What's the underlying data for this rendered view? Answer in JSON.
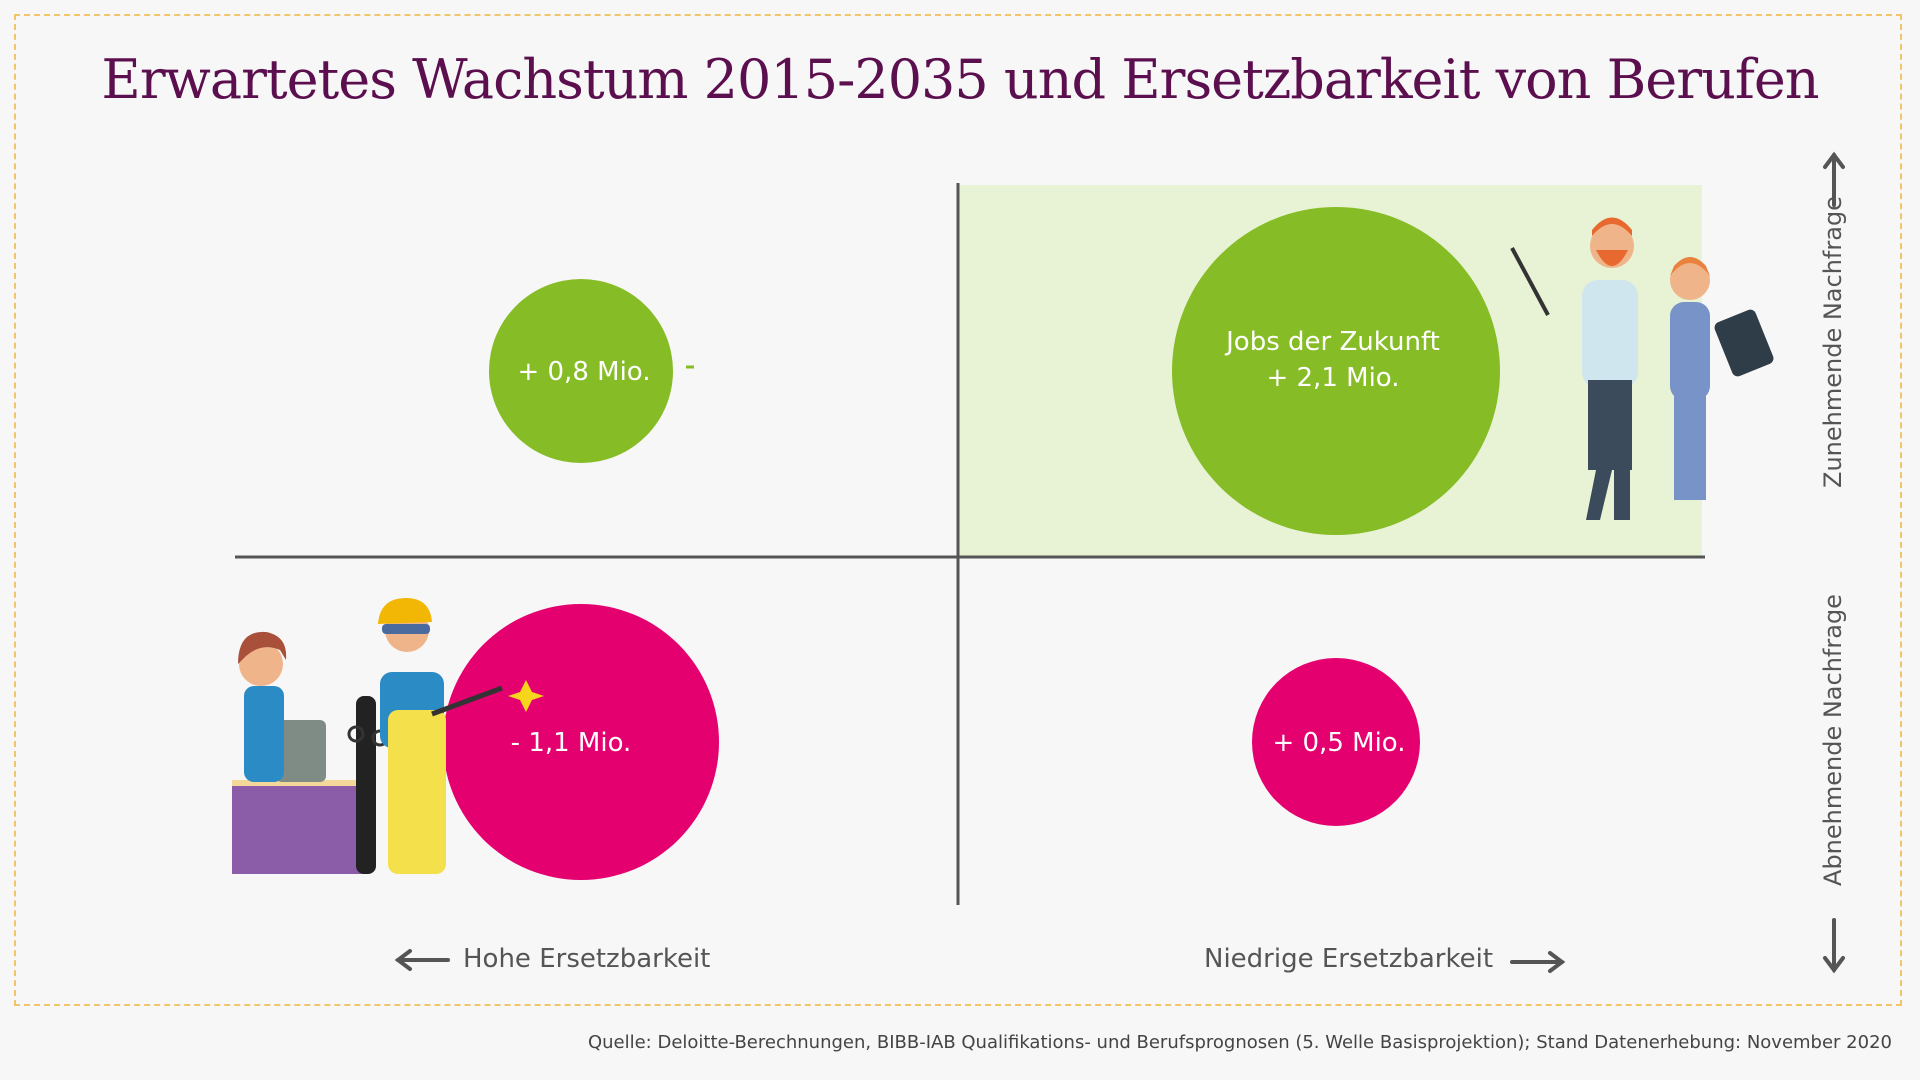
{
  "chart_data": {
    "type": "bubble",
    "title": "Erwartetes Wachstum 2015-2035 und Ersetzbarkeit von Berufen",
    "x_axis": {
      "left_label": "Hohe Ersetzbarkeit",
      "right_label": "Niedrige Ersetzbarkeit"
    },
    "y_axis": {
      "top_label": "Zunehmende Nachfrage",
      "bottom_label": "Abnehmende Nachfrage"
    },
    "quadrants": [
      {
        "id": "top-left",
        "label": "+ 0,8 Mio.",
        "value_mio": 0.8,
        "color": "#86bc25"
      },
      {
        "id": "top-right",
        "title": "Jobs der Zukunft",
        "label": "+ 2,1 Mio.",
        "value_mio": 2.1,
        "color": "#86bc25",
        "highlight": "#e8f2d5"
      },
      {
        "id": "bottom-left",
        "label": "- 1,1 Mio.",
        "value_mio": -1.1,
        "color": "#e4006f"
      },
      {
        "id": "bottom-right",
        "label": "+ 0,5 Mio.",
        "value_mio": 0.5,
        "color": "#e4006f"
      }
    ],
    "source": "Quelle: Deloitte-Berechnungen, BIBB-IAB Qualifikations- und Berufsprognosen (5. Welle Basisprojektion); Stand Datenerhebung: November 2020"
  },
  "colors": {
    "title": "#5c0f4f",
    "axis": "#555555",
    "green": "#86bc25",
    "magenta": "#e4006f",
    "frame": "#f2c56b"
  }
}
